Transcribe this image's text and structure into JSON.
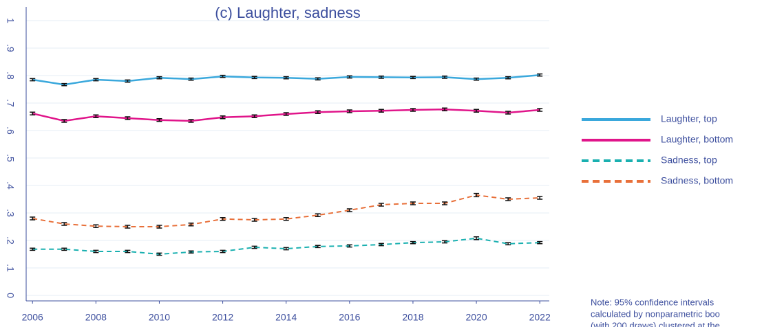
{
  "chart_data": {
    "type": "line",
    "title": "(c) Laughter, sadness",
    "x": [
      2006,
      2007,
      2008,
      2009,
      2010,
      2011,
      2012,
      2013,
      2014,
      2015,
      2016,
      2017,
      2018,
      2019,
      2020,
      2021,
      2022
    ],
    "series": [
      {
        "name": "Laughter, top",
        "color": "#3aa8dc",
        "dashed": false,
        "values": [
          0.785,
          0.767,
          0.785,
          0.78,
          0.792,
          0.787,
          0.797,
          0.793,
          0.792,
          0.788,
          0.795,
          0.794,
          0.793,
          0.794,
          0.787,
          0.792,
          0.802
        ],
        "errors": [
          0.004,
          0.004,
          0.004,
          0.004,
          0.004,
          0.004,
          0.004,
          0.004,
          0.004,
          0.004,
          0.004,
          0.004,
          0.004,
          0.004,
          0.004,
          0.004,
          0.004
        ]
      },
      {
        "name": "Laughter, bottom",
        "color": "#e0158a",
        "dashed": false,
        "values": [
          0.662,
          0.635,
          0.652,
          0.645,
          0.638,
          0.635,
          0.648,
          0.652,
          0.66,
          0.667,
          0.67,
          0.672,
          0.675,
          0.677,
          0.672,
          0.665,
          0.675
        ],
        "errors": [
          0.005,
          0.005,
          0.005,
          0.005,
          0.005,
          0.005,
          0.005,
          0.005,
          0.005,
          0.005,
          0.005,
          0.005,
          0.005,
          0.005,
          0.005,
          0.005,
          0.005
        ]
      },
      {
        "name": "Sadness, top",
        "color": "#1ab0b0",
        "dashed": true,
        "values": [
          0.168,
          0.168,
          0.16,
          0.16,
          0.15,
          0.158,
          0.16,
          0.175,
          0.17,
          0.178,
          0.18,
          0.185,
          0.192,
          0.195,
          0.208,
          0.188,
          0.192
        ],
        "errors": [
          0.004,
          0.004,
          0.004,
          0.004,
          0.004,
          0.004,
          0.004,
          0.004,
          0.004,
          0.004,
          0.004,
          0.004,
          0.004,
          0.004,
          0.005,
          0.004,
          0.004
        ]
      },
      {
        "name": "Sadness, bottom",
        "color": "#e8703a",
        "dashed": true,
        "values": [
          0.28,
          0.26,
          0.252,
          0.25,
          0.25,
          0.258,
          0.278,
          0.275,
          0.278,
          0.292,
          0.31,
          0.33,
          0.335,
          0.335,
          0.365,
          0.35,
          0.355
        ],
        "errors": [
          0.005,
          0.005,
          0.005,
          0.005,
          0.005,
          0.005,
          0.005,
          0.005,
          0.005,
          0.005,
          0.005,
          0.005,
          0.005,
          0.005,
          0.006,
          0.005,
          0.005
        ]
      }
    ],
    "xlim": [
      2005.8,
      2022.3
    ],
    "xticks": [
      2006,
      2008,
      2010,
      2012,
      2014,
      2016,
      2018,
      2020,
      2022
    ],
    "ylim": [
      -0.02,
      1.05
    ],
    "yticks": [
      0,
      {
        "value": 0.1,
        "label": ".1"
      },
      {
        "value": 0.2,
        "label": ".2"
      },
      {
        "value": 0.3,
        "label": ".3"
      },
      {
        "value": 0.4,
        "label": ".4"
      },
      {
        "value": 0.5,
        "label": ".5"
      },
      {
        "value": 0.6,
        "label": ".6"
      },
      {
        "value": 0.7,
        "label": ".7"
      },
      {
        "value": 0.8,
        "label": ".8"
      },
      {
        "value": 0.9,
        "label": ".9"
      },
      1
    ],
    "grid": true,
    "legend": "right",
    "note": [
      "Note: 95% confidence intervals",
      "calculated by nonparametric boo",
      "(with 200 draws) clustered at the"
    ]
  }
}
